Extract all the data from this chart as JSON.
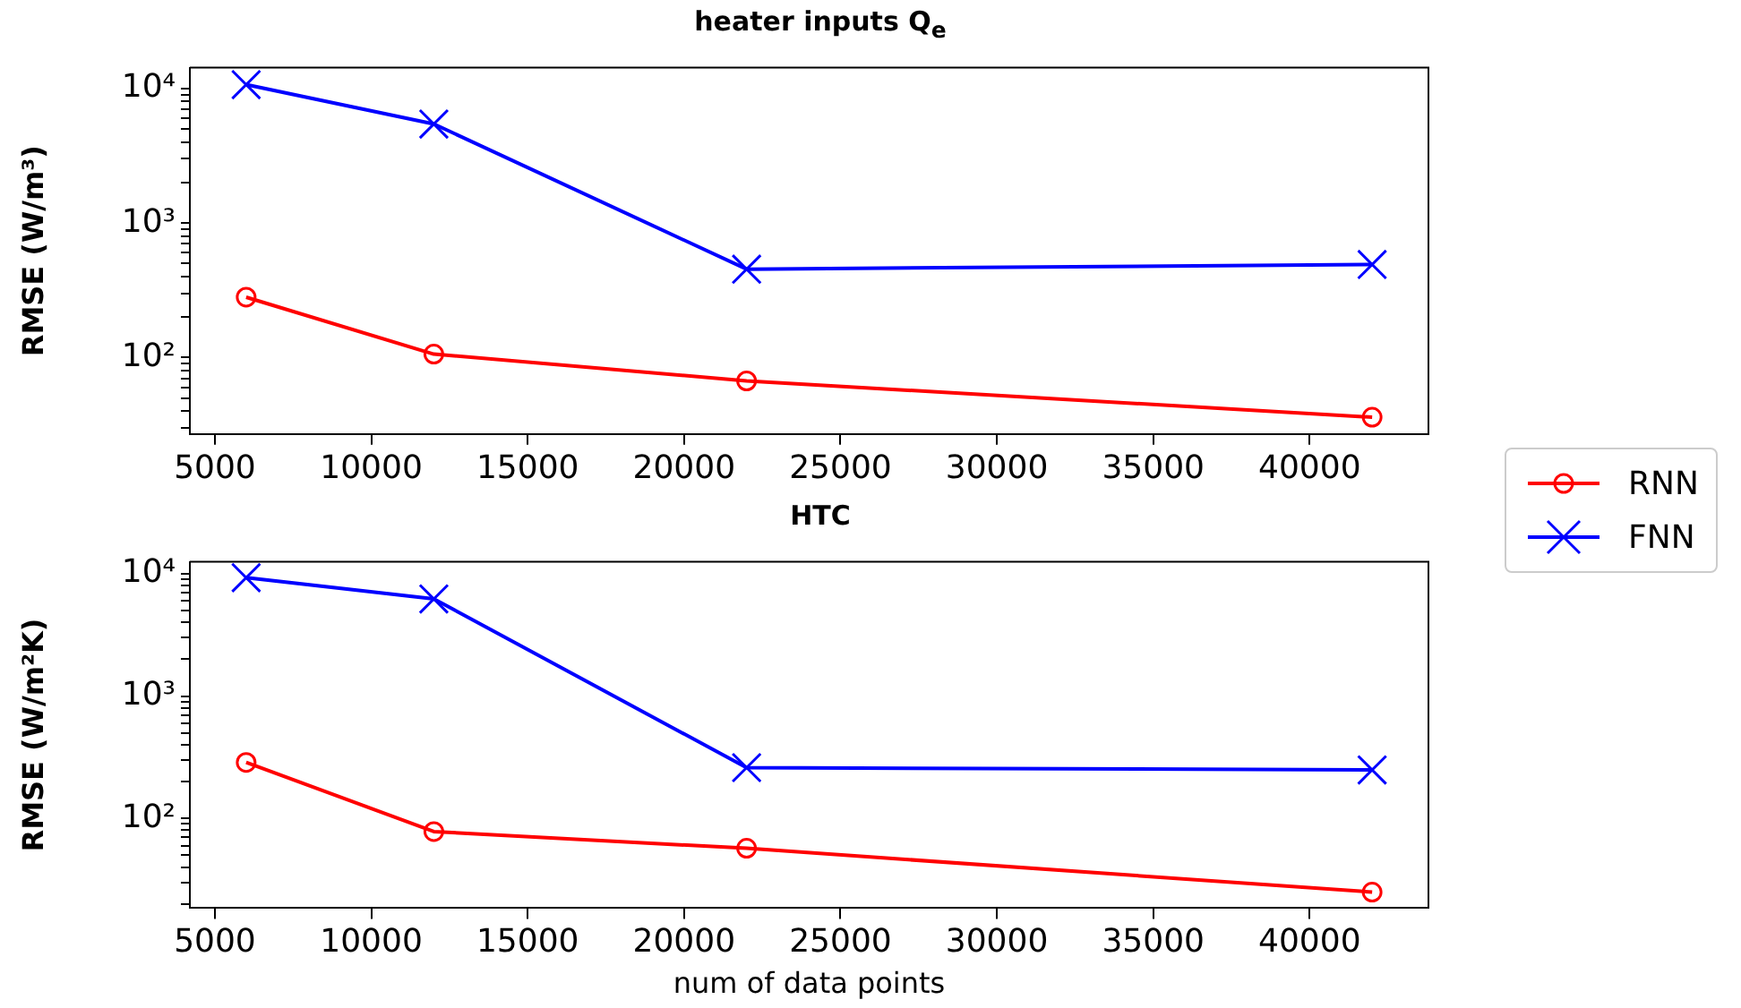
{
  "chart_data": [
    {
      "type": "line",
      "title": "heater inputs Q$_{e}$",
      "ylabel": "RMSE (W/m³)",
      "log": "y",
      "x": [
        6000,
        12000,
        22000,
        42000
      ],
      "series": [
        {
          "name": "RNN",
          "color": "#ff0000",
          "marker": "circle",
          "values": [
            281,
            106,
            67,
            36
          ]
        },
        {
          "name": "FNN",
          "color": "#0000ff",
          "marker": "cross",
          "values": [
            10700,
            5450,
            454,
            492
          ]
        }
      ],
      "xlim": [
        4200,
        43800
      ],
      "xticks": [
        5000,
        10000,
        15000,
        20000,
        25000,
        30000,
        35000,
        40000
      ],
      "ylim": [
        27,
        14300
      ],
      "yticks": [
        {
          "value": 30,
          "label": null
        },
        {
          "value": 40,
          "label": null
        },
        {
          "value": 50,
          "label": null
        },
        {
          "value": 60,
          "label": null
        },
        {
          "value": 70,
          "label": null
        },
        {
          "value": 80,
          "label": null
        },
        {
          "value": 90,
          "label": null
        },
        {
          "value": 100,
          "label": "10²"
        },
        {
          "value": 200,
          "label": null
        },
        {
          "value": 300,
          "label": null
        },
        {
          "value": 400,
          "label": null
        },
        {
          "value": 500,
          "label": null
        },
        {
          "value": 600,
          "label": null
        },
        {
          "value": 700,
          "label": null
        },
        {
          "value": 800,
          "label": null
        },
        {
          "value": 900,
          "label": null
        },
        {
          "value": 1000,
          "label": "10³"
        },
        {
          "value": 2000,
          "label": null
        },
        {
          "value": 3000,
          "label": null
        },
        {
          "value": 4000,
          "label": null
        },
        {
          "value": 5000,
          "label": null
        },
        {
          "value": 6000,
          "label": null
        },
        {
          "value": 7000,
          "label": null
        },
        {
          "value": 8000,
          "label": null
        },
        {
          "value": 9000,
          "label": null
        },
        {
          "value": 10000,
          "label": "10⁴"
        }
      ],
      "grid": false,
      "legend": "right"
    },
    {
      "type": "line",
      "title": "HTC",
      "xlabel": "num of data points",
      "ylabel": "RMSE (W/m²K)",
      "log": "y",
      "x": [
        6000,
        12000,
        22000,
        42000
      ],
      "series": [
        {
          "color": "#ff0000",
          "marker": "circle",
          "values": [
            287,
            78,
            57,
            25
          ]
        },
        {
          "color": "#0000ff",
          "marker": "cross",
          "values": [
            9270,
            6220,
            260,
            249
          ]
        }
      ],
      "xlim": [
        4200,
        43800
      ],
      "xticks": [
        5000,
        10000,
        15000,
        20000,
        25000,
        30000,
        35000,
        40000
      ],
      "ylim": [
        18.5,
        12500
      ],
      "yticks": [
        {
          "value": 20,
          "label": null
        },
        {
          "value": 30,
          "label": null
        },
        {
          "value": 40,
          "label": null
        },
        {
          "value": 50,
          "label": null
        },
        {
          "value": 60,
          "label": null
        },
        {
          "value": 70,
          "label": null
        },
        {
          "value": 80,
          "label": null
        },
        {
          "value": 90,
          "label": null
        },
        {
          "value": 100,
          "label": "10²"
        },
        {
          "value": 200,
          "label": null
        },
        {
          "value": 300,
          "label": null
        },
        {
          "value": 400,
          "label": null
        },
        {
          "value": 500,
          "label": null
        },
        {
          "value": 600,
          "label": null
        },
        {
          "value": 700,
          "label": null
        },
        {
          "value": 800,
          "label": null
        },
        {
          "value": 900,
          "label": null
        },
        {
          "value": 1000,
          "label": "10³"
        },
        {
          "value": 2000,
          "label": null
        },
        {
          "value": 3000,
          "label": null
        },
        {
          "value": 4000,
          "label": null
        },
        {
          "value": 5000,
          "label": null
        },
        {
          "value": 6000,
          "label": null
        },
        {
          "value": 7000,
          "label": null
        },
        {
          "value": 8000,
          "label": null
        },
        {
          "value": 9000,
          "label": null
        },
        {
          "value": 10000,
          "label": "10⁴"
        }
      ],
      "grid": false,
      "legend": false
    }
  ]
}
